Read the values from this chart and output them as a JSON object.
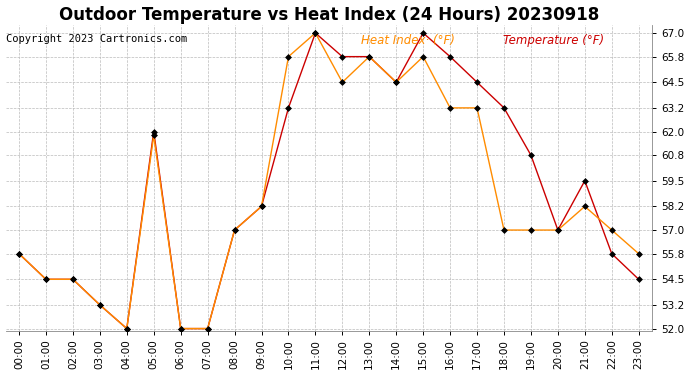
{
  "title": "Outdoor Temperature vs Heat Index (24 Hours) 20230918",
  "copyright": "Copyright 2023 Cartronics.com",
  "legend_heat": "Heat Index· (°F)",
  "legend_temp": "Temperature (°F)",
  "hours": [
    "00:00",
    "01:00",
    "02:00",
    "03:00",
    "04:00",
    "05:00",
    "06:00",
    "07:00",
    "08:00",
    "09:00",
    "10:00",
    "11:00",
    "12:00",
    "13:00",
    "14:00",
    "15:00",
    "16:00",
    "17:00",
    "18:00",
    "19:00",
    "20:00",
    "21:00",
    "22:00",
    "23:00"
  ],
  "temperature": [
    55.8,
    54.5,
    54.5,
    53.2,
    52.0,
    62.0,
    52.0,
    52.0,
    57.0,
    58.2,
    63.2,
    67.0,
    65.8,
    65.8,
    64.5,
    67.0,
    65.8,
    64.5,
    63.2,
    60.8,
    57.0,
    59.5,
    55.8,
    54.5
  ],
  "heat_index": [
    55.8,
    54.5,
    54.5,
    53.2,
    52.0,
    61.8,
    52.0,
    52.0,
    57.0,
    58.2,
    65.8,
    67.0,
    64.5,
    65.8,
    64.5,
    65.8,
    63.2,
    63.2,
    57.0,
    57.0,
    57.0,
    58.2,
    57.0,
    55.8
  ],
  "temp_color": "#cc0000",
  "heat_color": "#ff8c00",
  "marker_color": "#000000",
  "background_color": "#ffffff",
  "ylim_min": 52.0,
  "ylim_max": 67.0,
  "yticks": [
    52.0,
    53.2,
    54.5,
    55.8,
    57.0,
    58.2,
    59.5,
    60.8,
    62.0,
    63.2,
    64.5,
    65.8,
    67.0
  ],
  "grid_color": "#bbbbbb",
  "title_fontsize": 12,
  "copyright_fontsize": 7.5,
  "legend_fontsize": 8.5,
  "tick_fontsize": 7.5,
  "marker_size": 3
}
